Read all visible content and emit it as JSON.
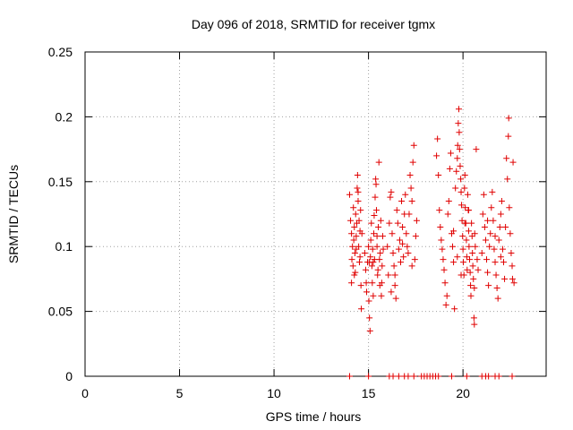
{
  "chart_data": {
    "type": "scatter",
    "title": "Day 096 of 2018, SRMTID for receiver tgmx",
    "xlabel": "GPS time / hours",
    "ylabel": "SRMTID / TECUs",
    "xlim": [
      0,
      24.4
    ],
    "ylim": [
      0,
      0.25
    ],
    "x_ticks": [
      0,
      5,
      10,
      15,
      20
    ],
    "y_ticks": [
      0,
      0.05,
      0.1,
      0.15,
      0.2,
      0.25
    ],
    "x_tick_labels": [
      "0",
      "5",
      "10",
      "15",
      "20"
    ],
    "y_tick_labels": [
      "0",
      "0.05",
      "0.1",
      "0.15",
      "0.2",
      "0.25"
    ],
    "grid": true,
    "marker": "plus",
    "color": "#e00000",
    "series": [
      {
        "name": "SRMTID",
        "points": [
          [
            14.0,
            0.14
          ],
          [
            14.05,
            0.12
          ],
          [
            14.1,
            0.11
          ],
          [
            14.12,
            0.09
          ],
          [
            14.15,
            0.1
          ],
          [
            14.18,
            0.085
          ],
          [
            14.2,
            0.13
          ],
          [
            14.22,
            0.105
          ],
          [
            14.25,
            0.115
          ],
          [
            14.28,
            0.095
          ],
          [
            14.3,
            0.08
          ],
          [
            14.32,
            0.125
          ],
          [
            14.35,
            0.108
          ],
          [
            14.38,
            0.118
          ],
          [
            14.4,
            0.145
          ],
          [
            14.42,
            0.155
          ],
          [
            14.45,
            0.135
          ],
          [
            14.48,
            0.1
          ],
          [
            14.5,
            0.12
          ],
          [
            14.52,
            0.088
          ],
          [
            14.55,
            0.092
          ],
          [
            14.58,
            0.128
          ],
          [
            14.6,
            0.07
          ],
          [
            14.62,
            0.052
          ],
          [
            14.65,
            0.11
          ],
          [
            14.1,
            0.072
          ],
          [
            14.25,
            0.078
          ],
          [
            14.45,
            0.142
          ],
          [
            14.55,
            0.112
          ],
          [
            14.35,
            0.098
          ],
          [
            14.8,
            0.095
          ],
          [
            14.85,
            0.082
          ],
          [
            14.88,
            0.072
          ],
          [
            14.9,
            0.065
          ],
          [
            14.95,
            0.088
          ],
          [
            15.0,
            0.1
          ],
          [
            15.02,
            0.058
          ],
          [
            15.05,
            0.045
          ],
          [
            15.08,
            0.035
          ],
          [
            15.1,
            0.092
          ],
          [
            15.12,
            0.105
          ],
          [
            15.15,
            0.118
          ],
          [
            15.18,
            0.085
          ],
          [
            15.2,
            0.072
          ],
          [
            15.22,
            0.098
          ],
          [
            15.25,
            0.088
          ],
          [
            15.28,
            0.11
          ],
          [
            15.3,
            0.124
          ],
          [
            15.32,
            0.09
          ],
          [
            15.35,
            0.138
          ],
          [
            15.38,
            0.152
          ],
          [
            15.4,
            0.148
          ],
          [
            15.42,
            0.128
          ],
          [
            15.45,
            0.1
          ],
          [
            15.48,
            0.078
          ],
          [
            15.5,
            0.082
          ],
          [
            15.52,
            0.115
          ],
          [
            15.55,
            0.165
          ],
          [
            15.58,
            0.09
          ],
          [
            15.6,
            0.07
          ],
          [
            15.62,
            0.095
          ],
          [
            15.65,
            0.12
          ],
          [
            15.68,
            0.062
          ],
          [
            15.7,
            0.072
          ],
          [
            15.72,
            0.085
          ],
          [
            15.75,
            0.108
          ],
          [
            15.78,
            0.098
          ],
          [
            15.05,
            0.088
          ],
          [
            15.25,
            0.062
          ],
          [
            15.45,
            0.108
          ],
          [
            16.0,
            0.1
          ],
          [
            16.05,
            0.078
          ],
          [
            16.1,
            0.118
          ],
          [
            16.15,
            0.138
          ],
          [
            16.2,
            0.142
          ],
          [
            16.25,
            0.11
          ],
          [
            16.3,
            0.095
          ],
          [
            16.35,
            0.085
          ],
          [
            16.4,
            0.07
          ],
          [
            16.45,
            0.06
          ],
          [
            16.5,
            0.128
          ],
          [
            16.55,
            0.118
          ],
          [
            16.6,
            0.098
          ],
          [
            16.65,
            0.105
          ],
          [
            16.7,
            0.088
          ],
          [
            16.75,
            0.135
          ],
          [
            16.8,
            0.115
          ],
          [
            16.85,
            0.092
          ],
          [
            16.9,
            0.125
          ],
          [
            16.95,
            0.14
          ],
          [
            17.0,
            0.11
          ],
          [
            17.05,
            0.1
          ],
          [
            17.1,
            0.095
          ],
          [
            17.15,
            0.125
          ],
          [
            17.2,
            0.155
          ],
          [
            17.25,
            0.145
          ],
          [
            17.3,
            0.135
          ],
          [
            17.35,
            0.165
          ],
          [
            17.4,
            0.178
          ],
          [
            17.45,
            0.09
          ],
          [
            17.5,
            0.108
          ],
          [
            17.55,
            0.12
          ],
          [
            16.2,
            0.065
          ],
          [
            16.4,
            0.078
          ],
          [
            16.8,
            0.102
          ],
          [
            17.3,
            0.085
          ],
          [
            18.6,
            0.17
          ],
          [
            18.65,
            0.183
          ],
          [
            18.7,
            0.155
          ],
          [
            18.75,
            0.128
          ],
          [
            18.8,
            0.115
          ],
          [
            18.85,
            0.105
          ],
          [
            18.9,
            0.098
          ],
          [
            18.95,
            0.09
          ],
          [
            19.0,
            0.082
          ],
          [
            19.05,
            0.072
          ],
          [
            19.1,
            0.055
          ],
          [
            19.15,
            0.062
          ],
          [
            19.2,
            0.125
          ],
          [
            19.25,
            0.135
          ],
          [
            19.3,
            0.16
          ],
          [
            19.35,
            0.172
          ],
          [
            19.4,
            0.11
          ],
          [
            19.45,
            0.1
          ],
          [
            19.5,
            0.088
          ],
          [
            19.55,
            0.052
          ],
          [
            19.6,
            0.145
          ],
          [
            19.65,
            0.158
          ],
          [
            19.7,
            0.168
          ],
          [
            19.72,
            0.178
          ],
          [
            19.75,
            0.195
          ],
          [
            19.78,
            0.206
          ],
          [
            19.8,
            0.188
          ],
          [
            19.82,
            0.175
          ],
          [
            19.85,
            0.162
          ],
          [
            19.88,
            0.152
          ],
          [
            19.9,
            0.142
          ],
          [
            19.92,
            0.132
          ],
          [
            19.95,
            0.12
          ],
          [
            19.98,
            0.108
          ],
          [
            20.0,
            0.098
          ],
          [
            20.02,
            0.088
          ],
          [
            20.05,
            0.078
          ],
          [
            20.08,
            0.145
          ],
          [
            20.1,
            0.155
          ],
          [
            20.12,
            0.13
          ],
          [
            20.15,
            0.118
          ],
          [
            20.18,
            0.105
          ],
          [
            20.2,
            0.092
          ],
          [
            20.22,
            0.082
          ],
          [
            20.25,
            0.14
          ],
          [
            20.28,
            0.128
          ],
          [
            20.3,
            0.112
          ],
          [
            20.32,
            0.1
          ],
          [
            20.35,
            0.09
          ],
          [
            20.38,
            0.08
          ],
          [
            20.4,
            0.07
          ],
          [
            20.42,
            0.062
          ],
          [
            20.45,
            0.118
          ],
          [
            20.48,
            0.108
          ],
          [
            20.5,
            0.095
          ],
          [
            20.52,
            0.085
          ],
          [
            20.55,
            0.075
          ],
          [
            20.58,
            0.045
          ],
          [
            20.6,
            0.04
          ],
          [
            20.62,
            0.11
          ],
          [
            20.65,
            0.1
          ],
          [
            20.7,
            0.175
          ],
          [
            20.75,
            0.09
          ],
          [
            20.8,
            0.082
          ],
          [
            19.7,
            0.092
          ],
          [
            19.9,
            0.078
          ],
          [
            20.1,
            0.118
          ],
          [
            20.3,
            0.128
          ],
          [
            19.5,
            0.112
          ],
          [
            20.6,
            0.068
          ],
          [
            21.0,
            0.095
          ],
          [
            21.05,
            0.125
          ],
          [
            21.1,
            0.14
          ],
          [
            21.15,
            0.115
          ],
          [
            21.2,
            0.105
          ],
          [
            21.25,
            0.09
          ],
          [
            21.3,
            0.08
          ],
          [
            21.35,
            0.07
          ],
          [
            21.4,
            0.1
          ],
          [
            21.45,
            0.11
          ],
          [
            21.5,
            0.13
          ],
          [
            21.55,
            0.142
          ],
          [
            21.6,
            0.12
          ],
          [
            21.65,
            0.098
          ],
          [
            21.7,
            0.088
          ],
          [
            21.75,
            0.078
          ],
          [
            21.8,
            0.068
          ],
          [
            21.85,
            0.06
          ],
          [
            21.9,
            0.105
          ],
          [
            21.95,
            0.115
          ],
          [
            22.0,
            0.125
          ],
          [
            22.05,
            0.135
          ],
          [
            22.1,
            0.098
          ],
          [
            22.15,
            0.088
          ],
          [
            22.2,
            0.075
          ],
          [
            22.25,
            0.115
          ],
          [
            22.3,
            0.168
          ],
          [
            22.35,
            0.152
          ],
          [
            22.4,
            0.185
          ],
          [
            22.42,
            0.199
          ],
          [
            22.45,
            0.13
          ],
          [
            22.5,
            0.11
          ],
          [
            22.55,
            0.095
          ],
          [
            22.6,
            0.085
          ],
          [
            22.62,
            0.075
          ],
          [
            22.65,
            0.165
          ],
          [
            22.7,
            0.072
          ],
          [
            21.3,
            0.12
          ],
          [
            21.7,
            0.108
          ],
          [
            22.0,
            0.092
          ],
          [
            14.0,
            0
          ],
          [
            15.0,
            0
          ],
          [
            16.1,
            0
          ],
          [
            16.3,
            0
          ],
          [
            16.6,
            0
          ],
          [
            16.9,
            0
          ],
          [
            17.1,
            0
          ],
          [
            17.4,
            0
          ],
          [
            17.8,
            0
          ],
          [
            17.95,
            0
          ],
          [
            18.1,
            0
          ],
          [
            18.25,
            0
          ],
          [
            18.4,
            0
          ],
          [
            18.55,
            0
          ],
          [
            18.7,
            0
          ],
          [
            19.4,
            0
          ],
          [
            20.2,
            0
          ],
          [
            21.0,
            0
          ],
          [
            21.2,
            0
          ],
          [
            21.35,
            0
          ],
          [
            21.7,
            0
          ],
          [
            21.9,
            0
          ],
          [
            22.6,
            0
          ]
        ]
      }
    ]
  }
}
